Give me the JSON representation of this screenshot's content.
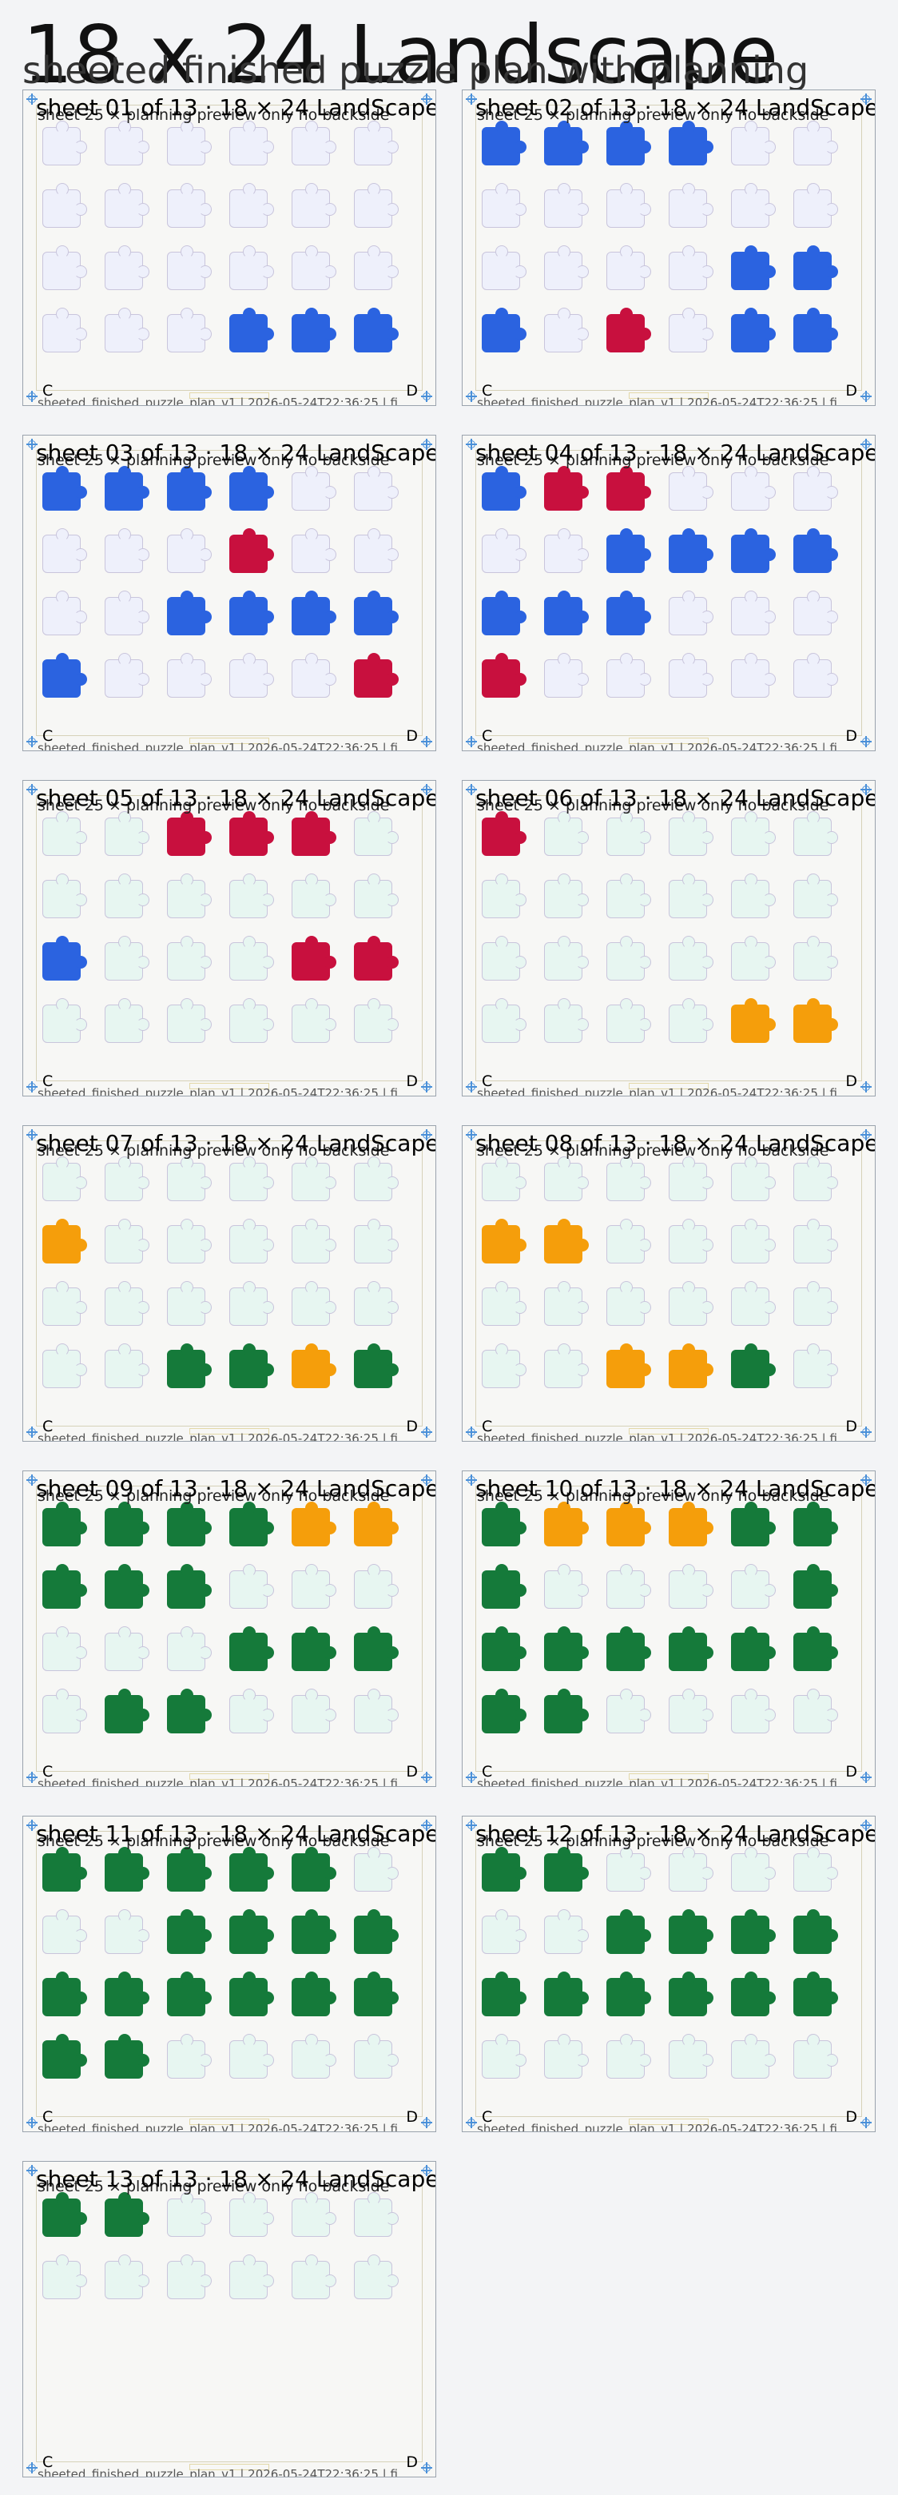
{
  "page": {
    "title": "18 x 24 Landscape",
    "subtitle": "sheeted finished puzzle plan with planning"
  },
  "colors": {
    "background": "#f3f4f6",
    "sheet_bg": "#f7f7f5",
    "piece_blue": "#2b63e0",
    "piece_red": "#c8103e",
    "piece_orange": "#f59e0b",
    "piece_green": "#157a3a",
    "ghost_lavender": "#eef0fb",
    "ghost_mint": "#e7f6f1",
    "registration": "#4a90d9"
  },
  "icons": {
    "registration_mark": "crosshair-circle-icon"
  },
  "sheet_common": {
    "caption": "sheet 25 × planning preview only no backside",
    "footer": "sheeted_finished_puzzle_plan_v1 | 2026-05-24T22:36:25 | fi",
    "corner_left": "C",
    "corner_right": "D"
  },
  "sheets": [
    {
      "title": "sheet 01 of 13 · 18 × 24 LandScape",
      "ghost": "lavender",
      "filled": [
        [
          3,
          3,
          "blue"
        ],
        [
          3,
          4,
          "blue"
        ],
        [
          3,
          5,
          "blue"
        ]
      ]
    },
    {
      "title": "sheet 02 of 13 · 18 × 24 LandScape",
      "ghost": "lavender",
      "filled": [
        [
          0,
          0,
          "blue"
        ],
        [
          0,
          1,
          "blue"
        ],
        [
          0,
          2,
          "blue"
        ],
        [
          0,
          3,
          "blue"
        ],
        [
          2,
          4,
          "blue"
        ],
        [
          2,
          5,
          "blue"
        ],
        [
          3,
          0,
          "blue"
        ],
        [
          3,
          2,
          "red"
        ],
        [
          3,
          4,
          "blue"
        ],
        [
          3,
          5,
          "blue"
        ]
      ]
    },
    {
      "title": "sheet 03 of 13 · 18 × 24 LandScape",
      "ghost": "lavender",
      "filled": [
        [
          0,
          0,
          "blue"
        ],
        [
          0,
          1,
          "blue"
        ],
        [
          0,
          2,
          "blue"
        ],
        [
          0,
          3,
          "blue"
        ],
        [
          1,
          3,
          "red"
        ],
        [
          2,
          2,
          "blue"
        ],
        [
          2,
          3,
          "blue"
        ],
        [
          2,
          4,
          "blue"
        ],
        [
          2,
          5,
          "blue"
        ],
        [
          3,
          0,
          "blue"
        ],
        [
          3,
          5,
          "red"
        ]
      ]
    },
    {
      "title": "sheet 04 of 13 · 18 × 24 LandScape",
      "ghost": "lavender",
      "filled": [
        [
          0,
          0,
          "blue"
        ],
        [
          0,
          1,
          "red"
        ],
        [
          0,
          2,
          "red"
        ],
        [
          1,
          2,
          "blue"
        ],
        [
          1,
          3,
          "blue"
        ],
        [
          1,
          4,
          "blue"
        ],
        [
          1,
          5,
          "blue"
        ],
        [
          2,
          0,
          "blue"
        ],
        [
          2,
          1,
          "blue"
        ],
        [
          2,
          2,
          "blue"
        ],
        [
          3,
          0,
          "red"
        ]
      ]
    },
    {
      "title": "sheet 05 of 13 · 18 × 24 LandScape",
      "ghost": "mint",
      "filled": [
        [
          0,
          2,
          "red"
        ],
        [
          0,
          3,
          "red"
        ],
        [
          0,
          4,
          "red"
        ],
        [
          2,
          0,
          "blue"
        ],
        [
          2,
          4,
          "red"
        ],
        [
          2,
          5,
          "red"
        ]
      ]
    },
    {
      "title": "sheet 06 of 13 · 18 × 24 LandScape",
      "ghost": "mint",
      "filled": [
        [
          0,
          0,
          "red"
        ],
        [
          3,
          4,
          "orange"
        ],
        [
          3,
          5,
          "orange"
        ]
      ]
    },
    {
      "title": "sheet 07 of 13 · 18 × 24 LandScape",
      "ghost": "mint",
      "filled": [
        [
          1,
          0,
          "orange"
        ],
        [
          3,
          2,
          "green"
        ],
        [
          3,
          3,
          "green"
        ],
        [
          3,
          4,
          "orange"
        ],
        [
          3,
          5,
          "green"
        ]
      ]
    },
    {
      "title": "sheet 08 of 13 · 18 × 24 LandScape",
      "ghost": "mint",
      "filled": [
        [
          1,
          0,
          "orange"
        ],
        [
          1,
          1,
          "orange"
        ],
        [
          3,
          2,
          "orange"
        ],
        [
          3,
          3,
          "orange"
        ],
        [
          3,
          4,
          "green"
        ]
      ]
    },
    {
      "title": "sheet 09 of 13 · 18 × 24 LandScape",
      "ghost": "mint",
      "filled": [
        [
          0,
          0,
          "green"
        ],
        [
          0,
          1,
          "green"
        ],
        [
          0,
          2,
          "green"
        ],
        [
          0,
          3,
          "green"
        ],
        [
          0,
          4,
          "orange"
        ],
        [
          0,
          5,
          "orange"
        ],
        [
          1,
          0,
          "green"
        ],
        [
          1,
          1,
          "green"
        ],
        [
          1,
          2,
          "green"
        ],
        [
          2,
          3,
          "green"
        ],
        [
          2,
          4,
          "green"
        ],
        [
          2,
          5,
          "green"
        ],
        [
          3,
          1,
          "green"
        ],
        [
          3,
          2,
          "green"
        ]
      ]
    },
    {
      "title": "sheet 10 of 13 · 18 × 24 LandScape",
      "ghost": "mint",
      "filled": [
        [
          0,
          0,
          "green"
        ],
        [
          0,
          1,
          "orange"
        ],
        [
          0,
          2,
          "orange"
        ],
        [
          0,
          3,
          "orange"
        ],
        [
          0,
          4,
          "green"
        ],
        [
          0,
          5,
          "green"
        ],
        [
          1,
          0,
          "green"
        ],
        [
          1,
          5,
          "green"
        ],
        [
          2,
          0,
          "green"
        ],
        [
          2,
          1,
          "green"
        ],
        [
          2,
          2,
          "green"
        ],
        [
          2,
          3,
          "green"
        ],
        [
          2,
          4,
          "green"
        ],
        [
          2,
          5,
          "green"
        ],
        [
          3,
          0,
          "green"
        ],
        [
          3,
          1,
          "green"
        ]
      ]
    },
    {
      "title": "sheet 11 of 13 · 18 × 24 LandScape",
      "ghost": "mint",
      "filled": [
        [
          0,
          0,
          "green"
        ],
        [
          0,
          1,
          "green"
        ],
        [
          0,
          2,
          "green"
        ],
        [
          0,
          3,
          "green"
        ],
        [
          0,
          4,
          "green"
        ],
        [
          1,
          2,
          "green"
        ],
        [
          1,
          3,
          "green"
        ],
        [
          1,
          4,
          "green"
        ],
        [
          1,
          5,
          "green"
        ],
        [
          2,
          0,
          "green"
        ],
        [
          2,
          1,
          "green"
        ],
        [
          2,
          2,
          "green"
        ],
        [
          2,
          3,
          "green"
        ],
        [
          2,
          4,
          "green"
        ],
        [
          2,
          5,
          "green"
        ],
        [
          3,
          0,
          "green"
        ],
        [
          3,
          1,
          "green"
        ]
      ]
    },
    {
      "title": "sheet 12 of 13 · 18 × 24 LandScape",
      "ghost": "mint",
      "filled": [
        [
          0,
          0,
          "green"
        ],
        [
          0,
          1,
          "green"
        ],
        [
          1,
          2,
          "green"
        ],
        [
          1,
          3,
          "green"
        ],
        [
          1,
          4,
          "green"
        ],
        [
          1,
          5,
          "green"
        ],
        [
          2,
          0,
          "green"
        ],
        [
          2,
          1,
          "green"
        ],
        [
          2,
          2,
          "green"
        ],
        [
          2,
          3,
          "green"
        ],
        [
          2,
          4,
          "green"
        ],
        [
          2,
          5,
          "green"
        ]
      ]
    },
    {
      "title": "sheet 13 of 13 · 18 × 24 LandScape",
      "ghost": "mint",
      "filled": [
        [
          0,
          0,
          "green"
        ],
        [
          0,
          1,
          "green"
        ]
      ],
      "rows": 2
    }
  ]
}
